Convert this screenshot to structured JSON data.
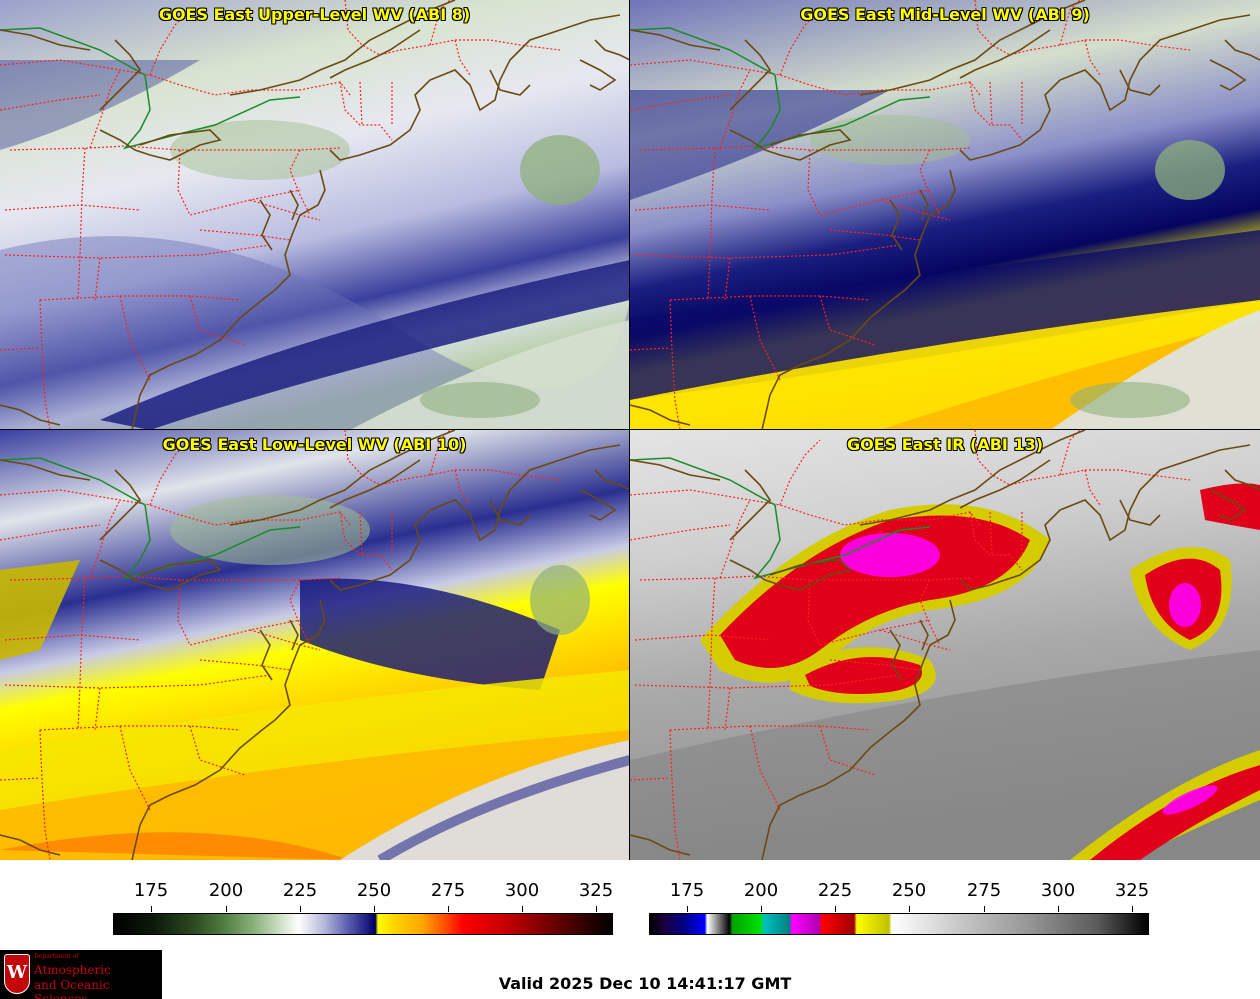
{
  "panels": [
    {
      "title": "GOES East Upper-Level WV (ABI 8)"
    },
    {
      "title": "GOES East Mid-Level WV (ABI 9)"
    },
    {
      "title": "GOES East Low-Level WV (ABI 10)"
    },
    {
      "title": "GOES East IR (ABI 13)"
    }
  ],
  "colorbars": {
    "wv": {
      "ticks": [
        "175",
        "200",
        "225",
        "250",
        "275",
        "300",
        "325"
      ]
    },
    "ir": {
      "ticks": [
        "175",
        "200",
        "225",
        "250",
        "275",
        "300",
        "325"
      ]
    }
  },
  "logo": {
    "dept": "Department of",
    "line1": "Atmospheric",
    "line2": "and Oceanic Sciences",
    "crest_letter": "W"
  },
  "valid_time": "Valid 2025 Dec 10 14:41:17 GMT",
  "colors": {
    "title_text": "#ffff00",
    "coastline": "#6b4a12",
    "state_border": "#ff2020",
    "canada_border": "#1a8a2a",
    "logo_red": "#c5050c"
  }
}
